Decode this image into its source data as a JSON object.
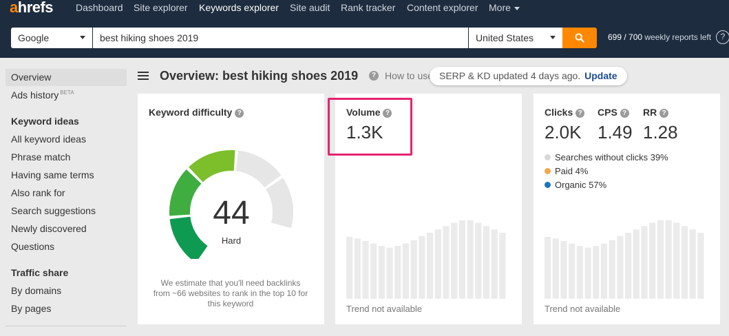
{
  "topnav": {
    "logo_a": "a",
    "logo_rest": "hrefs",
    "items": [
      {
        "label": "Dashboard",
        "active": false
      },
      {
        "label": "Site explorer",
        "active": false
      },
      {
        "label": "Keywords explorer",
        "active": true
      },
      {
        "label": "Site audit",
        "active": false
      },
      {
        "label": "Rank tracker",
        "active": false
      },
      {
        "label": "Content explorer",
        "active": false
      },
      {
        "label": "More",
        "active": false
      }
    ]
  },
  "search": {
    "engine": "Google",
    "query": "best hiking shoes 2019",
    "country": "United States",
    "go_icon": "search-icon",
    "reports_used": "699 / 700",
    "reports_suffix": "weekly reports left",
    "help_icon": "question-icon",
    "help_glyph": "?"
  },
  "sidebar": {
    "overview": "Overview",
    "ads_history": "Ads history",
    "beta": "BETA",
    "keyword_ideas_heading": "Keyword ideas",
    "keyword_ideas": [
      "All keyword ideas",
      "Phrase match",
      "Having same terms",
      "Also rank for",
      "Search suggestions",
      "Newly discovered",
      "Questions"
    ],
    "traffic_share_heading": "Traffic share",
    "traffic_share": [
      "By domains",
      "By pages"
    ]
  },
  "header": {
    "title": "Overview: best hiking shoes 2019",
    "how_to": "How to use",
    "serp_notice": "SERP & KD updated 4 days ago.",
    "update_link": "Update"
  },
  "kd_card": {
    "label": "Keyword difficulty",
    "value": "44",
    "word": "Hard",
    "fill_fraction": 0.44,
    "note": "We estimate that you'll need backlinks from ~66 websites to rank in the top 10 for this keyword"
  },
  "volume_card": {
    "label": "Volume",
    "value": "1.3K",
    "trend_text": "Trend not available"
  },
  "clicks_card": {
    "clicks_label": "Clicks",
    "clicks_value": "2.0K",
    "cps_label": "CPS",
    "cps_value": "1.49",
    "rr_label": "RR",
    "rr_value": "1.28",
    "legend": [
      {
        "label": "Searches without clicks 39%",
        "color": "#d8d8d8"
      },
      {
        "label": "Paid 4%",
        "color": "#f4a74a"
      },
      {
        "label": "Organic 57%",
        "color": "#1c75bc"
      }
    ],
    "trend_text": "Trend not available"
  },
  "trend_placeholder": [
    0.75,
    0.73,
    0.7,
    0.67,
    0.64,
    0.62,
    0.64,
    0.67,
    0.71,
    0.76,
    0.8,
    0.84,
    0.88,
    0.92,
    0.95,
    0.95,
    0.92,
    0.88,
    0.84,
    0.8
  ],
  "colors": {
    "nav_bg": "#1d2c3e",
    "accent": "#ff8800",
    "highlight": "#e5246f",
    "gauge_track": "#e6e6e6",
    "link": "#1a4c91"
  }
}
